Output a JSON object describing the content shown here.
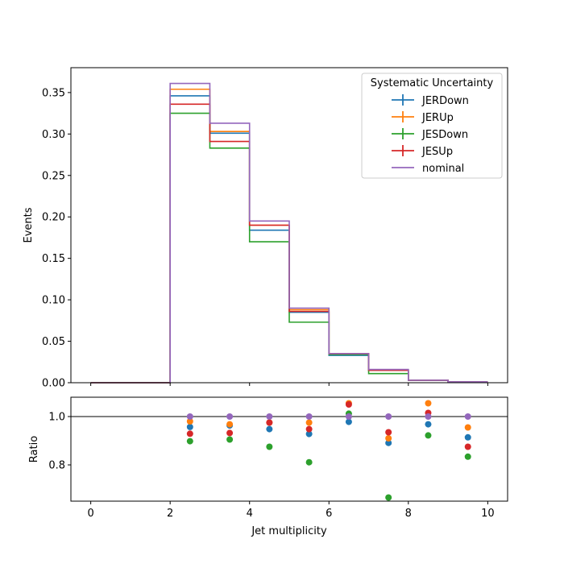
{
  "chart_data": {
    "type": "step",
    "bin_edges": [
      0,
      1,
      2,
      3,
      4,
      5,
      6,
      7,
      8,
      9,
      10
    ],
    "xlim": [
      -0.5,
      10.5
    ],
    "xticks": [
      "0",
      "2",
      "4",
      "6",
      "8",
      "10"
    ],
    "xlabel": "Jet multiplicity",
    "top_panel": {
      "ylabel": "Events",
      "ylim": [
        0,
        0.38
      ],
      "yticks": [
        "0.00",
        "0.05",
        "0.10",
        "0.15",
        "0.20",
        "0.25",
        "0.30",
        "0.35"
      ],
      "series": [
        {
          "name": "JERDown",
          "color": "#1f77b4",
          "values": [
            0,
            0,
            0.346,
            0.301,
            0.184,
            0.085,
            0.033,
            0.015,
            0.003,
            0.001
          ]
        },
        {
          "name": "JERUp",
          "color": "#ff7f0e",
          "values": [
            0,
            0,
            0.354,
            0.303,
            0.19,
            0.088,
            0.035,
            0.015,
            0.003,
            0.001
          ]
        },
        {
          "name": "JESDown",
          "color": "#2ca02c",
          "values": [
            0,
            0,
            0.325,
            0.283,
            0.17,
            0.073,
            0.034,
            0.011,
            0.003,
            0.001
          ]
        },
        {
          "name": "JESUp",
          "color": "#d62728",
          "values": [
            0,
            0,
            0.336,
            0.291,
            0.19,
            0.086,
            0.035,
            0.015,
            0.003,
            0.001
          ]
        },
        {
          "name": "nominal",
          "color": "#9467bd",
          "values": [
            0,
            0,
            0.361,
            0.313,
            0.195,
            0.09,
            0.035,
            0.016,
            0.003,
            0.001
          ]
        }
      ]
    },
    "ratio_panel": {
      "ylabel": "Ratio",
      "ylim": [
        0.65,
        1.08
      ],
      "yticks": [
        "0.8",
        "1.0"
      ],
      "reference_line": 1.0,
      "x": [
        2.5,
        3.5,
        4.5,
        5.5,
        6.5,
        7.5,
        8.5,
        9.5
      ],
      "series": [
        {
          "name": "JERDown",
          "values": [
            0.957,
            0.963,
            0.948,
            0.928,
            0.978,
            0.891,
            0.968,
            0.914
          ]
        },
        {
          "name": "JERUp",
          "values": [
            0.98,
            0.968,
            0.975,
            0.975,
            1.055,
            0.91,
            1.055,
            0.955
          ]
        },
        {
          "name": "JESDown",
          "values": [
            0.898,
            0.905,
            0.875,
            0.811,
            1.012,
            0.665,
            0.922,
            0.834
          ]
        },
        {
          "name": "JESUp",
          "values": [
            0.929,
            0.932,
            0.975,
            0.948,
            1.05,
            0.935,
            1.015,
            0.875
          ]
        },
        {
          "name": "nominal",
          "values": [
            1.0,
            1.0,
            1.0,
            1.0,
            1.0,
            1.0,
            1.0,
            1.0
          ]
        }
      ]
    },
    "legend": {
      "title": "Systematic Uncertainty",
      "position": "top-right"
    }
  }
}
